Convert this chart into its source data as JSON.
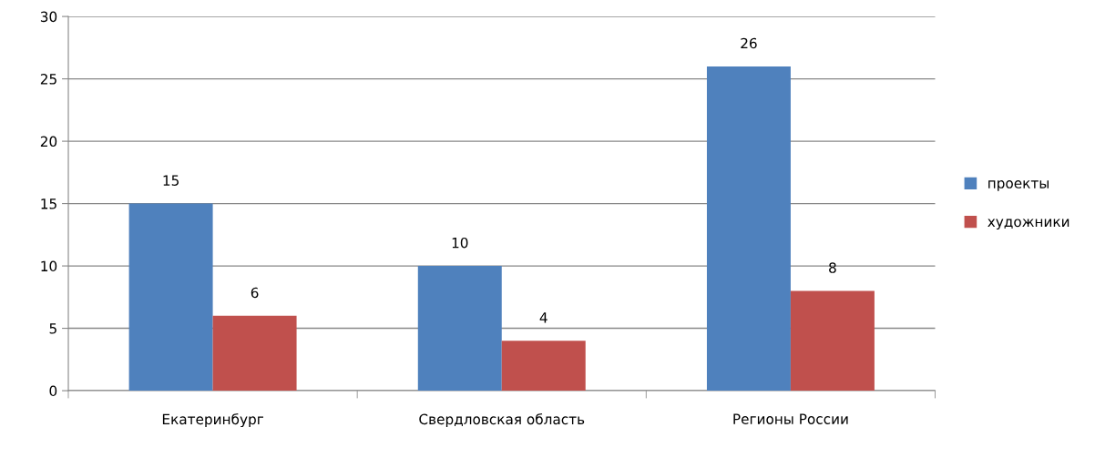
{
  "chart_data": {
    "type": "bar",
    "categories": [
      "Екатеринбург",
      "Свердловская область",
      "Регионы России"
    ],
    "series": [
      {
        "name": "проекты",
        "color": "#4f81bd",
        "values": [
          15,
          10,
          26
        ]
      },
      {
        "name": "художники",
        "color": "#c0504d",
        "values": [
          6,
          4,
          8
        ]
      }
    ],
    "ylim": [
      0,
      30
    ],
    "yticks": [
      0,
      5,
      10,
      15,
      20,
      25,
      30
    ],
    "grid": "y",
    "legend": "right",
    "data_labels": true
  }
}
